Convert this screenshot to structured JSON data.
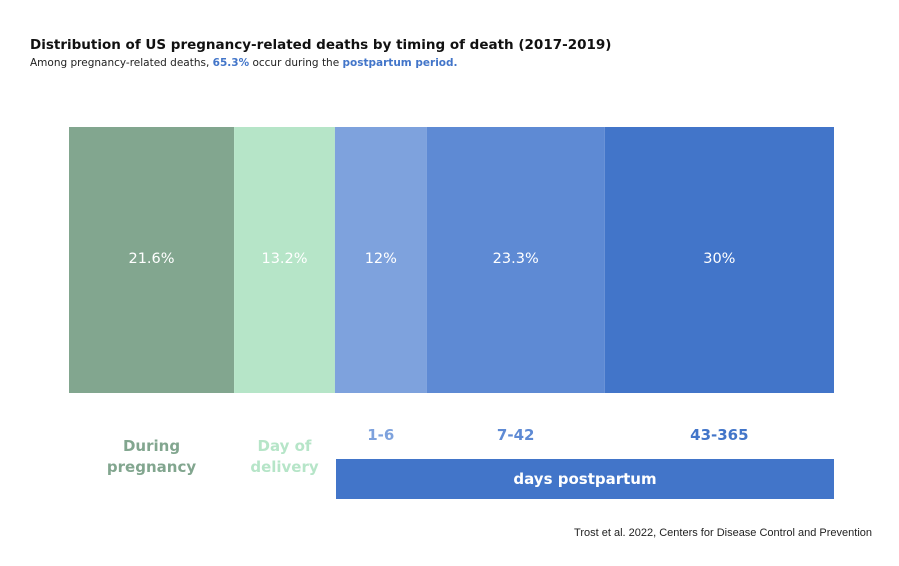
{
  "chart_data": {
    "type": "bar",
    "orientation": "horizontal-stacked-100",
    "title": "Distribution of US pregnancy-related deaths by timing of death (2017-2019)",
    "subtitle": {
      "prefix": "Among pregnancy-related deaths, ",
      "highlight_value": "65.3%",
      "middle": " occur during the ",
      "highlight_period": "postpartum period",
      "suffix": "."
    },
    "categories": [
      "During pregnancy",
      "Day of delivery",
      "1-6",
      "7-42",
      "43-365"
    ],
    "values": [
      21.6,
      13.2,
      12,
      23.3,
      30
    ],
    "value_labels": [
      "21.6%",
      "13.2%",
      "12%",
      "23.3%",
      "30%"
    ],
    "category_labels": [
      {
        "lines": [
          "During",
          "pregnancy"
        ],
        "color": "#82a68f"
      },
      {
        "lines": [
          "Day of",
          "delivery"
        ],
        "color": "#b6e5c8"
      },
      {
        "lines": [
          "1-6"
        ],
        "color": "#7ea2dd"
      },
      {
        "lines": [
          "7-42"
        ],
        "color": "#5e8ad4"
      },
      {
        "lines": [
          "43-365"
        ],
        "color": "#4275c9"
      }
    ],
    "colors": [
      "#82a68f",
      "#b6e5c8",
      "#7ea2dd",
      "#5e8ad4",
      "#4275c9"
    ],
    "group_label": "days postpartum",
    "group_color": "#4275c9",
    "source": "Trost et al. 2022, Centers for Disease Control and Prevention"
  }
}
